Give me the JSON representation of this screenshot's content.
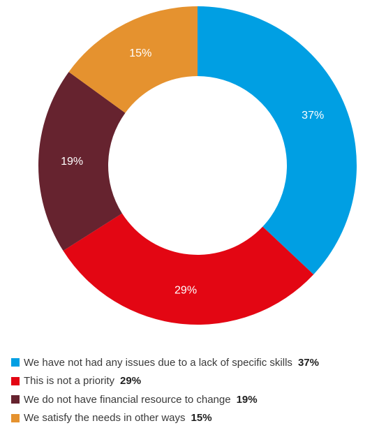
{
  "chart_data": {
    "type": "pie",
    "style": "donut",
    "legend_position": "bottom",
    "slices": [
      {
        "label": "We have not had any issues due to a lack of specific skills",
        "value": 37,
        "value_label": "37%",
        "color": "#009fe3"
      },
      {
        "label": "This is not a priority",
        "value": 29,
        "value_label": "29%",
        "color": "#e30613"
      },
      {
        "label": "We do not have financial resource to change",
        "value": 19,
        "value_label": "19%",
        "color": "#66232f"
      },
      {
        "label": "We satisfy the needs in other ways",
        "value": 15,
        "value_label": "15%",
        "color": "#e5922f"
      }
    ]
  }
}
